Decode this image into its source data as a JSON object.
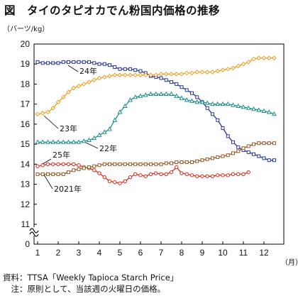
{
  "title": "図　タイのタピオカでん粉国内価格の推移",
  "unit_label": "（バーツ/kg）",
  "month_unit": "（月）",
  "notes": {
    "source": "資料：TTSA「Weekly Tapioca Starch Price」",
    "comment": "　注：原則として、当該週の火曜日の価格。"
  },
  "chart_data": {
    "type": "line",
    "title": "",
    "xlabel": "（月）",
    "ylabel": "（バーツ/kg）",
    "xlim": [
      1,
      12.8
    ],
    "ylim": [
      0,
      20
    ],
    "yaxis_break": true,
    "xticks": [
      "1",
      "2",
      "3",
      "4",
      "5",
      "6",
      "7",
      "8",
      "9",
      "10",
      "11",
      "12"
    ],
    "yticks": [
      "0",
      "11",
      "12",
      "13",
      "14",
      "15",
      "16",
      "17",
      "18",
      "19",
      "20"
    ],
    "grid": false,
    "series": [
      {
        "name": "24年",
        "color": "#2b3a9a",
        "marker": "square",
        "points": [
          [
            1.0,
            19.1
          ],
          [
            1.25,
            19.05
          ],
          [
            1.5,
            19.05
          ],
          [
            1.75,
            19.05
          ],
          [
            2.0,
            19.05
          ],
          [
            2.25,
            19.1
          ],
          [
            2.5,
            19.1
          ],
          [
            2.75,
            19.1
          ],
          [
            3.0,
            19.1
          ],
          [
            3.25,
            19.1
          ],
          [
            3.5,
            19.1
          ],
          [
            3.75,
            19.05
          ],
          [
            4.0,
            19.0
          ],
          [
            4.25,
            19.0
          ],
          [
            4.5,
            18.95
          ],
          [
            4.75,
            18.85
          ],
          [
            5.0,
            18.75
          ],
          [
            5.25,
            18.75
          ],
          [
            5.5,
            18.75
          ],
          [
            5.75,
            18.7
          ],
          [
            6.0,
            18.65
          ],
          [
            6.25,
            18.55
          ],
          [
            6.5,
            18.4
          ],
          [
            6.75,
            18.35
          ],
          [
            7.0,
            18.3
          ],
          [
            7.25,
            18.2
          ],
          [
            7.5,
            18.1
          ],
          [
            7.75,
            18.0
          ],
          [
            8.0,
            17.85
          ],
          [
            8.25,
            17.7
          ],
          [
            8.5,
            17.55
          ],
          [
            8.75,
            17.35
          ],
          [
            9.0,
            17.1
          ],
          [
            9.25,
            16.8
          ],
          [
            9.5,
            16.5
          ],
          [
            9.75,
            16.2
          ],
          [
            10.0,
            15.8
          ],
          [
            10.25,
            15.4
          ],
          [
            10.5,
            15.1
          ],
          [
            10.75,
            14.85
          ],
          [
            11.0,
            14.7
          ],
          [
            11.25,
            14.6
          ],
          [
            11.5,
            14.5
          ],
          [
            11.75,
            14.4
          ],
          [
            12.0,
            14.3
          ],
          [
            12.25,
            14.2
          ],
          [
            12.5,
            14.2
          ]
        ]
      },
      {
        "name": "23年",
        "color": "#f0a020",
        "marker": "diamond",
        "points": [
          [
            1.0,
            16.5
          ],
          [
            1.25,
            16.55
          ],
          [
            1.5,
            16.6
          ],
          [
            1.75,
            16.8
          ],
          [
            2.0,
            17.1
          ],
          [
            2.25,
            17.35
          ],
          [
            2.5,
            17.6
          ],
          [
            2.75,
            17.8
          ],
          [
            3.0,
            17.9
          ],
          [
            3.25,
            18.0
          ],
          [
            3.5,
            18.1
          ],
          [
            3.75,
            18.2
          ],
          [
            4.0,
            18.3
          ],
          [
            4.25,
            18.35
          ],
          [
            4.5,
            18.4
          ],
          [
            4.75,
            18.45
          ],
          [
            5.0,
            18.45
          ],
          [
            5.25,
            18.45
          ],
          [
            5.5,
            18.45
          ],
          [
            5.75,
            18.45
          ],
          [
            6.0,
            18.45
          ],
          [
            6.25,
            18.45
          ],
          [
            6.5,
            18.45
          ],
          [
            6.75,
            18.45
          ],
          [
            7.0,
            18.5
          ],
          [
            7.25,
            18.5
          ],
          [
            7.5,
            18.5
          ],
          [
            7.75,
            18.5
          ],
          [
            8.0,
            18.5
          ],
          [
            8.25,
            18.55
          ],
          [
            8.5,
            18.55
          ],
          [
            8.75,
            18.6
          ],
          [
            9.0,
            18.6
          ],
          [
            9.25,
            18.6
          ],
          [
            9.5,
            18.6
          ],
          [
            9.75,
            18.65
          ],
          [
            10.0,
            18.7
          ],
          [
            10.25,
            18.75
          ],
          [
            10.5,
            18.8
          ],
          [
            10.75,
            18.9
          ],
          [
            11.0,
            19.0
          ],
          [
            11.25,
            19.1
          ],
          [
            11.5,
            19.25
          ],
          [
            11.75,
            19.3
          ],
          [
            12.0,
            19.3
          ],
          [
            12.25,
            19.3
          ],
          [
            12.5,
            19.3
          ]
        ]
      },
      {
        "name": "22年",
        "color": "#1f8f8a",
        "marker": "triangle",
        "points": [
          [
            1.0,
            15.1
          ],
          [
            1.25,
            15.1
          ],
          [
            1.5,
            15.1
          ],
          [
            1.75,
            15.1
          ],
          [
            2.0,
            15.1
          ],
          [
            2.25,
            15.1
          ],
          [
            2.5,
            15.1
          ],
          [
            2.75,
            15.1
          ],
          [
            3.0,
            15.1
          ],
          [
            3.25,
            15.15
          ],
          [
            3.5,
            15.2
          ],
          [
            3.75,
            15.3
          ],
          [
            4.0,
            15.45
          ],
          [
            4.25,
            15.6
          ],
          [
            4.5,
            15.75
          ],
          [
            4.75,
            16.2
          ],
          [
            5.0,
            16.6
          ],
          [
            5.25,
            16.9
          ],
          [
            5.5,
            17.2
          ],
          [
            5.75,
            17.35
          ],
          [
            6.0,
            17.4
          ],
          [
            6.25,
            17.45
          ],
          [
            6.5,
            17.5
          ],
          [
            6.75,
            17.5
          ],
          [
            7.0,
            17.5
          ],
          [
            7.25,
            17.5
          ],
          [
            7.5,
            17.5
          ],
          [
            7.75,
            17.4
          ],
          [
            8.0,
            17.3
          ],
          [
            8.25,
            17.2
          ],
          [
            8.5,
            17.15
          ],
          [
            8.75,
            17.1
          ],
          [
            9.0,
            17.1
          ],
          [
            9.25,
            17.05
          ],
          [
            9.5,
            17.0
          ],
          [
            9.75,
            17.0
          ],
          [
            10.0,
            17.0
          ],
          [
            10.25,
            17.0
          ],
          [
            10.5,
            16.95
          ],
          [
            10.75,
            16.9
          ],
          [
            11.0,
            16.85
          ],
          [
            11.25,
            16.8
          ],
          [
            11.5,
            16.75
          ],
          [
            11.75,
            16.7
          ],
          [
            12.0,
            16.65
          ],
          [
            12.25,
            16.6
          ],
          [
            12.5,
            16.5
          ]
        ]
      },
      {
        "name": "25年",
        "color": "#e02818",
        "marker": "circle",
        "points": [
          [
            1.0,
            13.9
          ],
          [
            1.25,
            13.95
          ],
          [
            1.5,
            14.0
          ],
          [
            1.75,
            14.0
          ],
          [
            2.0,
            14.0
          ],
          [
            2.25,
            14.0
          ],
          [
            2.5,
            14.0
          ],
          [
            2.75,
            14.0
          ],
          [
            3.0,
            13.95
          ],
          [
            3.25,
            13.85
          ],
          [
            3.5,
            13.8
          ],
          [
            3.75,
            13.7
          ],
          [
            4.0,
            13.55
          ],
          [
            4.25,
            13.35
          ],
          [
            4.5,
            13.15
          ],
          [
            4.75,
            13.1
          ],
          [
            5.0,
            13.05
          ],
          [
            5.25,
            13.15
          ],
          [
            5.5,
            13.35
          ],
          [
            5.75,
            13.5
          ],
          [
            6.0,
            13.45
          ],
          [
            6.25,
            13.4
          ],
          [
            6.5,
            13.5
          ],
          [
            6.75,
            13.55
          ],
          [
            7.0,
            13.5
          ],
          [
            7.25,
            13.5
          ],
          [
            7.5,
            13.6
          ],
          [
            7.75,
            13.85
          ],
          [
            8.0,
            13.55
          ],
          [
            8.25,
            13.5
          ],
          [
            8.5,
            13.45
          ],
          [
            8.75,
            13.4
          ],
          [
            9.0,
            13.4
          ],
          [
            9.25,
            13.4
          ],
          [
            9.5,
            13.4
          ],
          [
            9.75,
            13.45
          ],
          [
            10.0,
            13.45
          ],
          [
            10.25,
            13.45
          ],
          [
            10.5,
            13.5
          ],
          [
            10.75,
            13.5
          ],
          [
            11.0,
            13.5
          ],
          [
            11.25,
            13.6
          ]
        ]
      },
      {
        "name": "2021年",
        "color": "#9a5a2a",
        "marker": "square",
        "points": [
          [
            1.0,
            13.5
          ],
          [
            1.25,
            13.5
          ],
          [
            1.5,
            13.5
          ],
          [
            1.75,
            13.5
          ],
          [
            2.0,
            13.5
          ],
          [
            2.25,
            13.5
          ],
          [
            2.5,
            13.6
          ],
          [
            2.75,
            13.7
          ],
          [
            3.0,
            13.75
          ],
          [
            3.25,
            13.8
          ],
          [
            3.5,
            13.85
          ],
          [
            3.75,
            13.9
          ],
          [
            4.0,
            13.95
          ],
          [
            4.25,
            14.0
          ],
          [
            4.5,
            14.0
          ],
          [
            4.75,
            14.0
          ],
          [
            5.0,
            14.0
          ],
          [
            5.25,
            14.0
          ],
          [
            5.5,
            14.0
          ],
          [
            5.75,
            14.0
          ],
          [
            6.0,
            14.0
          ],
          [
            6.25,
            14.0
          ],
          [
            6.5,
            14.0
          ],
          [
            6.75,
            14.0
          ],
          [
            7.0,
            14.0
          ],
          [
            7.25,
            14.05
          ],
          [
            7.5,
            14.05
          ],
          [
            7.75,
            14.1
          ],
          [
            8.0,
            14.1
          ],
          [
            8.25,
            14.1
          ],
          [
            8.5,
            14.1
          ],
          [
            8.75,
            14.15
          ],
          [
            9.0,
            14.2
          ],
          [
            9.25,
            14.25
          ],
          [
            9.5,
            14.3
          ],
          [
            9.75,
            14.35
          ],
          [
            10.0,
            14.4
          ],
          [
            10.25,
            14.45
          ],
          [
            10.5,
            14.55
          ],
          [
            10.75,
            14.65
          ],
          [
            11.0,
            14.8
          ],
          [
            11.25,
            14.9
          ],
          [
            11.5,
            15.0
          ],
          [
            11.75,
            15.05
          ],
          [
            12.0,
            15.05
          ],
          [
            12.25,
            15.05
          ],
          [
            12.5,
            15.05
          ]
        ]
      }
    ]
  }
}
